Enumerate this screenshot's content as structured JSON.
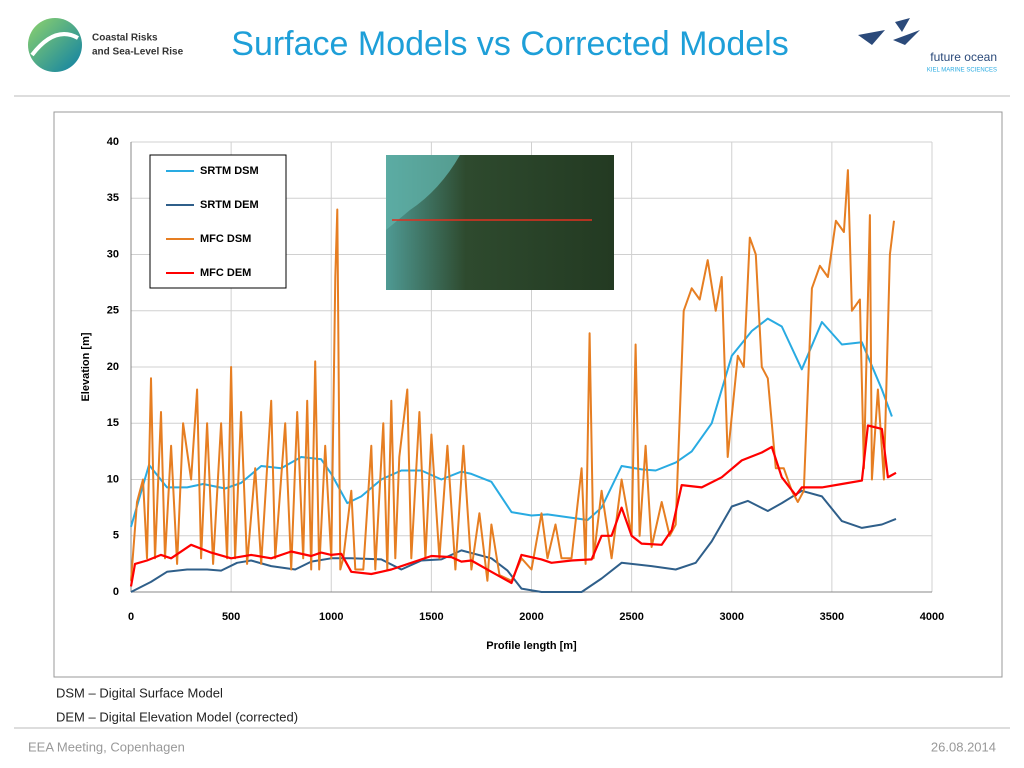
{
  "header": {
    "logo_line1": "Coastal Risks",
    "logo_line2": "and Sea-Level Rise",
    "title": "Surface Models vs Corrected Models",
    "partner": "future ocean",
    "partner_sub": "KIEL MARINE SCIENCES"
  },
  "chart_data": {
    "type": "line",
    "xlabel": "Profile length  [m]",
    "ylabel": "Elevation  [m]",
    "xlim": [
      0,
      4000
    ],
    "xticks": [
      0,
      500,
      1000,
      1500,
      2000,
      2500,
      3000,
      3500,
      4000
    ],
    "ylim": [
      0,
      40
    ],
    "yticks": [
      0,
      5,
      10,
      15,
      20,
      25,
      30,
      35,
      40
    ],
    "grid": true,
    "series": [
      {
        "name": "SRTM DSM",
        "color": "#29abe2",
        "x": [
          0,
          90,
          180,
          280,
          360,
          470,
          550,
          650,
          750,
          850,
          950,
          1000,
          1080,
          1150,
          1250,
          1350,
          1450,
          1550,
          1650,
          1700,
          1800,
          1900,
          2000,
          2080,
          2200,
          2280,
          2350,
          2450,
          2550,
          2620,
          2720,
          2800,
          2900,
          3000,
          3100,
          3180,
          3250,
          3350,
          3450,
          3550,
          3650,
          3750,
          3800
        ],
        "values": [
          5.8,
          11.3,
          9.3,
          9.3,
          9.6,
          9.2,
          9.7,
          11.2,
          11,
          12,
          11.8,
          10.5,
          7.9,
          8.5,
          10,
          10.8,
          10.8,
          10,
          10.7,
          10.5,
          9.8,
          7.1,
          6.8,
          6.9,
          6.6,
          6.4,
          7.5,
          11.2,
          10.9,
          10.8,
          11.5,
          12.5,
          15,
          21,
          23.2,
          24.3,
          23.6,
          19.8,
          24,
          22,
          22.2,
          18,
          15.6
        ]
      },
      {
        "name": "SRTM DEM",
        "color": "#2f5f8a",
        "x": [
          0,
          100,
          180,
          280,
          380,
          450,
          530,
          600,
          700,
          820,
          900,
          1000,
          1100,
          1250,
          1350,
          1450,
          1550,
          1650,
          1800,
          1880,
          1950,
          2050,
          2150,
          2250,
          2350,
          2450,
          2600,
          2720,
          2820,
          2900,
          3000,
          3080,
          3180,
          3250,
          3350,
          3450,
          3550,
          3650,
          3750,
          3820
        ],
        "values": [
          0,
          0.9,
          1.8,
          2,
          2,
          1.9,
          2.6,
          2.8,
          2.3,
          2,
          2.7,
          3,
          3,
          2.9,
          2,
          2.8,
          2.9,
          3.7,
          3,
          1.9,
          0.3,
          0,
          0,
          0,
          1.2,
          2.6,
          2.3,
          2,
          2.6,
          4.5,
          7.6,
          8.1,
          7.2,
          7.9,
          9,
          8.5,
          6.3,
          5.7,
          6,
          6.5
        ]
      },
      {
        "name": "MFC DSM",
        "color": "#e67e22",
        "x": [
          0,
          30,
          60,
          80,
          100,
          120,
          150,
          170,
          200,
          230,
          260,
          300,
          330,
          350,
          380,
          410,
          450,
          480,
          500,
          520,
          550,
          580,
          620,
          650,
          700,
          720,
          770,
          800,
          830,
          860,
          880,
          900,
          920,
          940,
          970,
          1000,
          1020,
          1030,
          1045,
          1060,
          1100,
          1120,
          1160,
          1200,
          1220,
          1260,
          1280,
          1300,
          1320,
          1340,
          1380,
          1400,
          1440,
          1470,
          1500,
          1540,
          1580,
          1620,
          1660,
          1700,
          1740,
          1780,
          1800,
          1840,
          1900,
          1950,
          2000,
          2050,
          2080,
          2120,
          2150,
          2200,
          2250,
          2270,
          2290,
          2310,
          2350,
          2400,
          2450,
          2500,
          2520,
          2540,
          2570,
          2600,
          2650,
          2690,
          2720,
          2760,
          2800,
          2840,
          2880,
          2920,
          2950,
          2980,
          3030,
          3060,
          3090,
          3120,
          3150,
          3180,
          3220,
          3260,
          3300,
          3330,
          3360,
          3400,
          3440,
          3480,
          3520,
          3560,
          3580,
          3600,
          3640,
          3660,
          3690,
          3700,
          3730,
          3760,
          3790,
          3810
        ],
        "values": [
          1,
          8,
          10,
          3,
          19,
          3,
          16,
          3,
          13,
          2.5,
          15,
          10,
          18,
          3,
          15,
          2.5,
          15,
          3,
          20,
          3,
          16,
          2.5,
          11,
          2.5,
          17,
          3,
          15,
          2,
          16,
          3,
          17,
          2,
          20.5,
          2,
          13,
          3,
          28,
          34,
          2,
          3,
          9,
          2,
          2,
          13,
          2,
          15,
          2,
          17,
          3,
          12,
          18,
          3,
          16,
          3,
          14,
          3,
          13,
          2,
          13,
          2,
          7,
          1,
          6,
          1.5,
          1,
          3,
          2,
          7,
          3,
          6,
          3,
          3,
          11,
          2.5,
          23,
          3,
          9,
          3,
          10,
          5,
          22,
          5,
          13,
          4,
          8,
          5,
          6,
          25,
          27,
          26,
          29.5,
          25,
          28,
          12,
          21,
          20,
          31.5,
          30,
          20,
          19,
          11,
          11,
          9,
          8,
          9,
          27,
          29,
          28,
          33,
          32,
          37.5,
          25,
          26,
          11,
          33.5,
          10,
          18,
          10,
          30,
          33
        ]
      },
      {
        "name": "MFC DEM",
        "color": "#ff0000",
        "x": [
          0,
          20,
          80,
          150,
          200,
          300,
          400,
          500,
          600,
          700,
          800,
          900,
          950,
          1000,
          1050,
          1100,
          1200,
          1250,
          1300,
          1400,
          1500,
          1600,
          1650,
          1700,
          1800,
          1900,
          1950,
          2050,
          2100,
          2200,
          2300,
          2350,
          2400,
          2450,
          2500,
          2550,
          2650,
          2700,
          2750,
          2850,
          2950,
          3050,
          3150,
          3200,
          3250,
          3320,
          3350,
          3450,
          3550,
          3650,
          3680,
          3750,
          3780,
          3820
        ],
        "values": [
          0.5,
          2.5,
          2.8,
          3.3,
          3,
          4.2,
          3.5,
          3,
          3.3,
          3,
          3.6,
          3.2,
          3.5,
          3.3,
          3.4,
          1.8,
          1.6,
          1.8,
          2,
          2.6,
          3.2,
          3.1,
          2.7,
          2.8,
          1.8,
          0.8,
          3.3,
          2.9,
          2.6,
          2.8,
          2.9,
          5,
          5,
          7.5,
          5,
          4.3,
          4.2,
          5.5,
          9.5,
          9.3,
          10.2,
          11.7,
          12.4,
          12.9,
          10.2,
          8.6,
          9.3,
          9.3,
          9.6,
          9.9,
          14.8,
          14.5,
          10.2,
          10.6
        ]
      }
    ]
  },
  "notes": [
    "DSM – Digital Surface Model",
    "DEM – Digital Elevation Model (corrected)"
  ],
  "footer": {
    "left": "EEA Meeting, Copenhagen",
    "right": "26.08.2014"
  }
}
